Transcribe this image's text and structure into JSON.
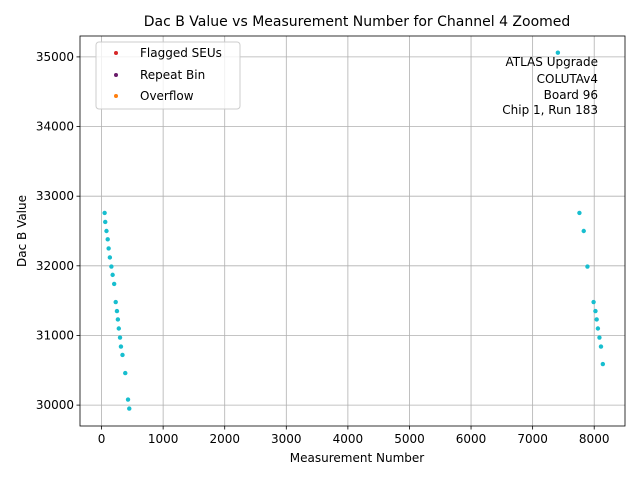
{
  "chart_data": {
    "type": "scatter",
    "title": "Dac B Value vs Measurement Number for Channel 4 Zoomed",
    "xlabel": "Measurement Number",
    "ylabel": "Dac B Value",
    "xlim": [
      -350,
      8500
    ],
    "ylim": [
      29700,
      35300
    ],
    "xticks": [
      0,
      1000,
      2000,
      3000,
      4000,
      5000,
      6000,
      7000,
      8000
    ],
    "yticks": [
      30000,
      31000,
      32000,
      33000,
      34000,
      35000
    ],
    "grid": true,
    "legend_position": "upper-left",
    "legend": [
      {
        "label": "Flagged SEUs",
        "color": "#d62728"
      },
      {
        "label": "Repeat Bin",
        "color": "#6a1b6a"
      },
      {
        "label": "Overflow",
        "color": "#ff7f0e"
      }
    ],
    "annotation": [
      "ATLAS Upgrade",
      "COLUTAv4",
      "Board 96",
      "Chip 1, Run 183"
    ],
    "series": [
      {
        "color": "#17becf",
        "points": [
          [
            50,
            32760
          ],
          [
            60,
            32630
          ],
          [
            80,
            32500
          ],
          [
            100,
            32380
          ],
          [
            115,
            32250
          ],
          [
            135,
            32120
          ],
          [
            160,
            31990
          ],
          [
            180,
            31870
          ],
          [
            205,
            31740
          ],
          [
            230,
            31480
          ],
          [
            250,
            31350
          ],
          [
            265,
            31230
          ],
          [
            280,
            31100
          ],
          [
            300,
            30970
          ],
          [
            315,
            30840
          ],
          [
            340,
            30720
          ],
          [
            385,
            30460
          ],
          [
            430,
            30080
          ],
          [
            450,
            29950
          ],
          [
            7410,
            35060
          ],
          [
            7760,
            32760
          ],
          [
            7830,
            32500
          ],
          [
            7890,
            31990
          ],
          [
            7990,
            31480
          ],
          [
            8020,
            31350
          ],
          [
            8040,
            31230
          ],
          [
            8060,
            31100
          ],
          [
            8085,
            30970
          ],
          [
            8110,
            30840
          ],
          [
            8140,
            30590
          ]
        ]
      }
    ]
  }
}
